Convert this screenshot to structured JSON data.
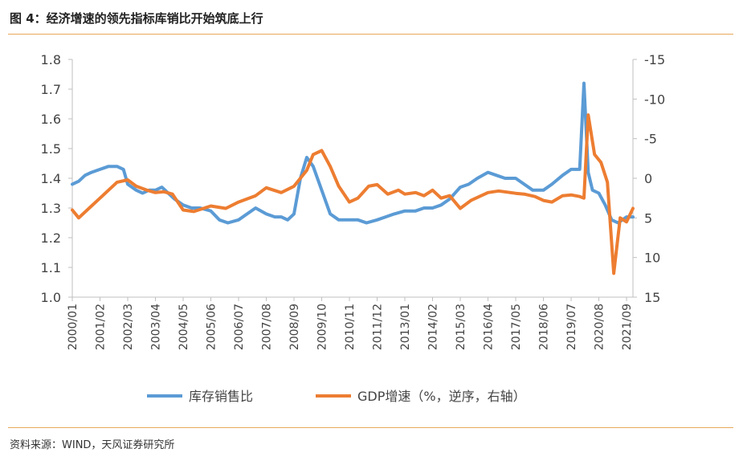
{
  "header": {
    "title": "图 4：经济增速的领先指标库销比开始筑底上行"
  },
  "footer": {
    "source": "资料来源：WIND，天风证券研究所"
  },
  "chart_data": {
    "type": "line",
    "title": "图 4：经济增速的领先指标库销比开始筑底上行",
    "xlabel": "",
    "ylabel_left": "",
    "ylabel_right": "",
    "x_tick_labels": [
      "2000/01",
      "2001/02",
      "2002/03",
      "2003/04",
      "2004/05",
      "2005/06",
      "2006/07",
      "2007/08",
      "2008/09",
      "2009/10",
      "2010/11",
      "2011/12",
      "2013/01",
      "2014/02",
      "2015/03",
      "2016/04",
      "2017/05",
      "2018/06",
      "2019/07",
      "2020/08",
      "2021/09"
    ],
    "left_axis": {
      "ylim": [
        1.0,
        1.8
      ],
      "ticks": [
        "1.0",
        "1.1",
        "1.2",
        "1.3",
        "1.4",
        "1.5",
        "1.6",
        "1.7",
        "1.8"
      ]
    },
    "right_axis": {
      "ylim": [
        15,
        -15
      ],
      "inverted": true,
      "ticks": [
        "-15",
        "-10",
        "-5",
        "0",
        "5",
        "10",
        "15"
      ]
    },
    "legend_position": "bottom",
    "grid": false,
    "series": [
      {
        "name": "库存销售比",
        "axis": "left",
        "color": "#5b9bd5",
        "points": [
          [
            "2000/01",
            1.38
          ],
          [
            "2000/04",
            1.39
          ],
          [
            "2000/07",
            1.41
          ],
          [
            "2000/10",
            1.42
          ],
          [
            "2001/02",
            1.43
          ],
          [
            "2001/06",
            1.44
          ],
          [
            "2001/10",
            1.44
          ],
          [
            "2002/01",
            1.43
          ],
          [
            "2002/03",
            1.38
          ],
          [
            "2002/07",
            1.36
          ],
          [
            "2002/10",
            1.35
          ],
          [
            "2003/01",
            1.36
          ],
          [
            "2003/04",
            1.36
          ],
          [
            "2003/07",
            1.37
          ],
          [
            "2003/10",
            1.35
          ],
          [
            "2004/01",
            1.33
          ],
          [
            "2004/05",
            1.31
          ],
          [
            "2004/09",
            1.3
          ],
          [
            "2005/01",
            1.3
          ],
          [
            "2005/06",
            1.29
          ],
          [
            "2005/10",
            1.26
          ],
          [
            "2006/02",
            1.25
          ],
          [
            "2006/07",
            1.26
          ],
          [
            "2006/11",
            1.28
          ],
          [
            "2007/03",
            1.3
          ],
          [
            "2007/08",
            1.28
          ],
          [
            "2007/12",
            1.27
          ],
          [
            "2008/03",
            1.27
          ],
          [
            "2008/06",
            1.26
          ],
          [
            "2008/09",
            1.28
          ],
          [
            "2008/12",
            1.4
          ],
          [
            "2009/03",
            1.47
          ],
          [
            "2009/06",
            1.44
          ],
          [
            "2009/10",
            1.36
          ],
          [
            "2010/02",
            1.28
          ],
          [
            "2010/06",
            1.26
          ],
          [
            "2010/11",
            1.26
          ],
          [
            "2011/03",
            1.26
          ],
          [
            "2011/07",
            1.25
          ],
          [
            "2011/12",
            1.26
          ],
          [
            "2012/04",
            1.27
          ],
          [
            "2012/08",
            1.28
          ],
          [
            "2013/01",
            1.29
          ],
          [
            "2013/06",
            1.29
          ],
          [
            "2013/10",
            1.3
          ],
          [
            "2014/02",
            1.3
          ],
          [
            "2014/06",
            1.31
          ],
          [
            "2014/10",
            1.33
          ],
          [
            "2015/03",
            1.37
          ],
          [
            "2015/07",
            1.38
          ],
          [
            "2015/11",
            1.4
          ],
          [
            "2016/04",
            1.42
          ],
          [
            "2016/08",
            1.41
          ],
          [
            "2016/12",
            1.4
          ],
          [
            "2017/05",
            1.4
          ],
          [
            "2017/09",
            1.38
          ],
          [
            "2018/01",
            1.36
          ],
          [
            "2018/06",
            1.36
          ],
          [
            "2018/10",
            1.38
          ],
          [
            "2019/03",
            1.41
          ],
          [
            "2019/07",
            1.43
          ],
          [
            "2019/11",
            1.43
          ],
          [
            "2020/01",
            1.72
          ],
          [
            "2020/03",
            1.42
          ],
          [
            "2020/05",
            1.36
          ],
          [
            "2020/08",
            1.35
          ],
          [
            "2020/11",
            1.31
          ],
          [
            "2021/02",
            1.26
          ],
          [
            "2021/05",
            1.25
          ],
          [
            "2021/09",
            1.27
          ],
          [
            "2021/12",
            1.27
          ]
        ]
      },
      {
        "name": "GDP增速（%，逆序，右轴）",
        "axis": "right",
        "color": "#ed7d31",
        "points": [
          [
            "2000/01",
            4.0
          ],
          [
            "2000/04",
            5.0
          ],
          [
            "2000/10",
            3.5
          ],
          [
            "2001/02",
            2.5
          ],
          [
            "2001/06",
            1.5
          ],
          [
            "2001/10",
            0.5
          ],
          [
            "2002/03",
            0.2
          ],
          [
            "2002/07",
            1.0
          ],
          [
            "2002/12",
            1.5
          ],
          [
            "2003/04",
            1.8
          ],
          [
            "2003/08",
            1.7
          ],
          [
            "2003/12",
            2.0
          ],
          [
            "2004/05",
            4.0
          ],
          [
            "2004/10",
            4.2
          ],
          [
            "2005/06",
            3.5
          ],
          [
            "2006/01",
            3.8
          ],
          [
            "2006/07",
            3.0
          ],
          [
            "2007/03",
            2.2
          ],
          [
            "2007/08",
            1.2
          ],
          [
            "2008/03",
            1.8
          ],
          [
            "2008/09",
            1.0
          ],
          [
            "2009/03",
            -1.0
          ],
          [
            "2009/06",
            -3.0
          ],
          [
            "2009/10",
            -3.5
          ],
          [
            "2010/02",
            -1.5
          ],
          [
            "2010/06",
            1.0
          ],
          [
            "2010/11",
            3.0
          ],
          [
            "2011/03",
            2.5
          ],
          [
            "2011/08",
            1.0
          ],
          [
            "2011/12",
            0.8
          ],
          [
            "2012/05",
            2.0
          ],
          [
            "2012/10",
            1.5
          ],
          [
            "2013/01",
            2.0
          ],
          [
            "2013/06",
            1.8
          ],
          [
            "2013/10",
            2.2
          ],
          [
            "2014/02",
            1.5
          ],
          [
            "2014/06",
            2.5
          ],
          [
            "2014/10",
            2.2
          ],
          [
            "2015/03",
            3.8
          ],
          [
            "2015/08",
            2.8
          ],
          [
            "2016/04",
            1.8
          ],
          [
            "2016/09",
            1.6
          ],
          [
            "2017/05",
            1.9
          ],
          [
            "2017/09",
            2.0
          ],
          [
            "2018/02",
            2.3
          ],
          [
            "2018/06",
            2.8
          ],
          [
            "2018/10",
            3.0
          ],
          [
            "2019/03",
            2.2
          ],
          [
            "2019/07",
            2.1
          ],
          [
            "2019/11",
            2.3
          ],
          [
            "2020/01",
            2.5
          ],
          [
            "2020/03",
            -8.0
          ],
          [
            "2020/06",
            -3.0
          ],
          [
            "2020/09",
            -2.0
          ],
          [
            "2020/12",
            0.5
          ],
          [
            "2021/03",
            12.0
          ],
          [
            "2021/06",
            5.0
          ],
          [
            "2021/09",
            5.5
          ],
          [
            "2021/12",
            3.8
          ]
        ]
      }
    ]
  }
}
